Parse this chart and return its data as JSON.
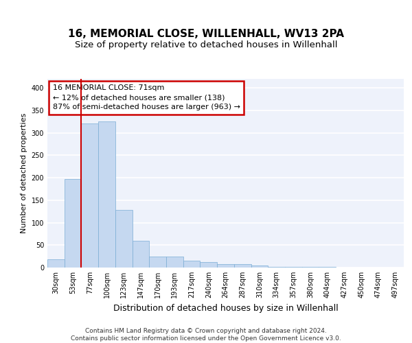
{
  "title": "16, MEMORIAL CLOSE, WILLENHALL, WV13 2PA",
  "subtitle": "Size of property relative to detached houses in Willenhall",
  "xlabel": "Distribution of detached houses by size in Willenhall",
  "ylabel": "Number of detached properties",
  "categories": [
    "30sqm",
    "53sqm",
    "77sqm",
    "100sqm",
    "123sqm",
    "147sqm",
    "170sqm",
    "193sqm",
    "217sqm",
    "240sqm",
    "264sqm",
    "287sqm",
    "310sqm",
    "334sqm",
    "357sqm",
    "380sqm",
    "404sqm",
    "427sqm",
    "450sqm",
    "474sqm",
    "497sqm"
  ],
  "values": [
    18,
    197,
    320,
    325,
    128,
    60,
    25,
    25,
    15,
    12,
    8,
    7,
    4,
    2,
    2,
    1,
    1,
    0.5,
    0.5,
    0.5,
    0.5
  ],
  "bar_color": "#c5d8f0",
  "bar_edge_color": "#7aadd4",
  "vline_x": 1.5,
  "vline_color": "#cc0000",
  "annotation_text": "16 MEMORIAL CLOSE: 71sqm\n← 12% of detached houses are smaller (138)\n87% of semi-detached houses are larger (963) →",
  "annotation_box_color": "#cc0000",
  "ylim": [
    0,
    420
  ],
  "yticks": [
    0,
    50,
    100,
    150,
    200,
    250,
    300,
    350,
    400
  ],
  "footer": "Contains HM Land Registry data © Crown copyright and database right 2024.\nContains public sector information licensed under the Open Government Licence v3.0.",
  "background_color": "#eef2fb",
  "grid_color": "#ffffff",
  "title_fontsize": 11,
  "subtitle_fontsize": 9.5,
  "xlabel_fontsize": 9,
  "ylabel_fontsize": 8,
  "tick_fontsize": 7,
  "footer_fontsize": 6.5
}
